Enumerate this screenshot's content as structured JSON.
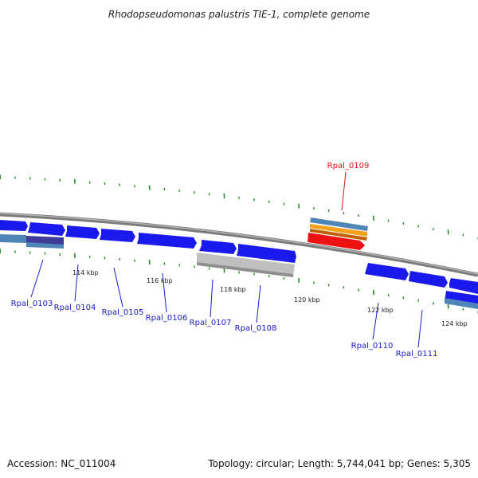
{
  "title": "Rhodopseudomonas palustris TIE-1, complete genome",
  "footer": {
    "accession": "Accession: NC_011004",
    "summary": "Topology: circular; Length: 5,744,041 bp; Genes: 5,305"
  },
  "colors": {
    "gene_fwd": "#1a1aee",
    "gene_highlight": "#ee1111",
    "label_normal": "#1a1acc",
    "label_highlight": "#dd1111",
    "tick": "#2a8a2a",
    "backbone": "#8c8c8c"
  },
  "scale_labels": [
    "114 kbp",
    "116 kbp",
    "118 kbp",
    "120 kbp",
    "122 kbp",
    "124 kbp"
  ],
  "genes": [
    {
      "label": "Rpal_0103",
      "highlight": false
    },
    {
      "label": "Rpal_0104",
      "highlight": false
    },
    {
      "label": "Rpal_0105",
      "highlight": false
    },
    {
      "label": "Rpal_0106",
      "highlight": false
    },
    {
      "label": "Rpal_0107",
      "highlight": false
    },
    {
      "label": "Rpal_0108",
      "highlight": false
    },
    {
      "label": "Rpal_0109",
      "highlight": true
    },
    {
      "label": "Rpal_0110",
      "highlight": false
    },
    {
      "label": "Rpal_0111",
      "highlight": false
    }
  ]
}
